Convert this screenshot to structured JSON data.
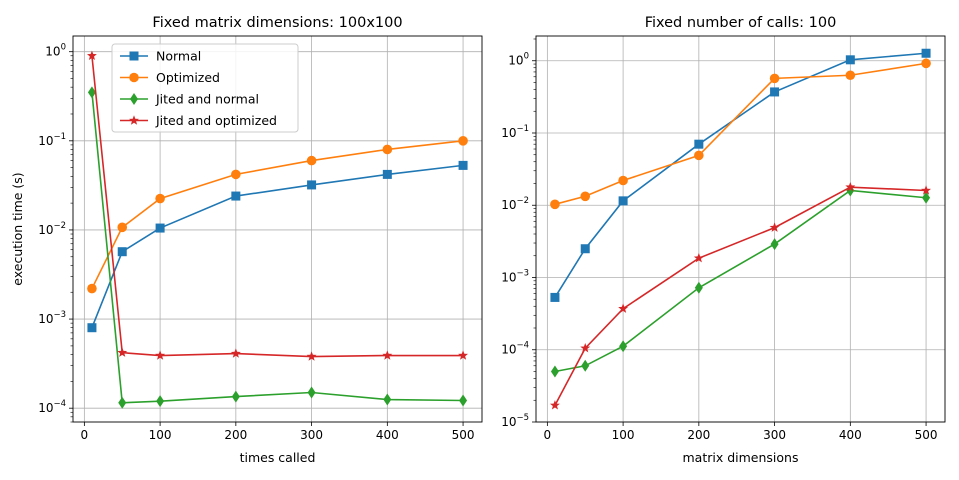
{
  "chart_data": [
    {
      "type": "line",
      "title": "Fixed matrix dimensions: 100x100",
      "xlabel": "times called",
      "ylabel": "execution time (s)",
      "yscale": "log",
      "xlim": [
        -15,
        525
      ],
      "ylim": [
        7e-05,
        1.5
      ],
      "xticks": [
        0,
        100,
        200,
        300,
        400,
        500
      ],
      "xtick_labels": [
        "0",
        "100",
        "200",
        "300",
        "400",
        "500"
      ],
      "yticks": [
        0.0001,
        0.001,
        0.01,
        0.1,
        1
      ],
      "ytick_labels": [
        {
          "base": "10",
          "exp": "−4"
        },
        {
          "base": "10",
          "exp": "−3"
        },
        {
          "base": "10",
          "exp": "−2"
        },
        {
          "base": "10",
          "exp": "−1"
        },
        {
          "base": "10",
          "exp": "0"
        }
      ],
      "grid": true,
      "legend": "upper-left",
      "x": [
        10,
        50,
        100,
        200,
        300,
        400,
        500
      ],
      "series": [
        {
          "name": "Normal",
          "color": "#1f77b4",
          "marker": "square",
          "values": [
            0.0008,
            0.0057,
            0.0105,
            0.024,
            0.032,
            0.042,
            0.053
          ]
        },
        {
          "name": "Optimized",
          "color": "#ff7f0e",
          "marker": "circle",
          "values": [
            0.0022,
            0.0107,
            0.0225,
            0.042,
            0.06,
            0.08,
            0.1
          ]
        },
        {
          "name": "Jited and normal",
          "color": "#2ca02c",
          "marker": "diamond",
          "values": [
            0.35,
            0.000115,
            0.00012,
            0.000135,
            0.00015,
            0.000125,
            0.000122
          ]
        },
        {
          "name": "Jited and optimized",
          "color": "#d62728",
          "marker": "star",
          "values": [
            0.9,
            0.00042,
            0.00039,
            0.00041,
            0.00038,
            0.00039,
            0.00039
          ]
        }
      ]
    },
    {
      "type": "line",
      "title": "Fixed number of calls: 100",
      "xlabel": "matrix dimensions",
      "ylabel": "",
      "yscale": "log",
      "xlim": [
        -15,
        525
      ],
      "ylim": [
        1e-05,
        2.2
      ],
      "xticks": [
        0,
        100,
        200,
        300,
        400,
        500
      ],
      "xtick_labels": [
        "0",
        "100",
        "200",
        "300",
        "400",
        "500"
      ],
      "yticks": [
        1e-05,
        0.0001,
        0.001,
        0.01,
        0.1,
        1
      ],
      "ytick_labels": [
        {
          "base": "10",
          "exp": "−5"
        },
        {
          "base": "10",
          "exp": "−4"
        },
        {
          "base": "10",
          "exp": "−3"
        },
        {
          "base": "10",
          "exp": "−2"
        },
        {
          "base": "10",
          "exp": "−1"
        },
        {
          "base": "10",
          "exp": "0"
        }
      ],
      "grid": true,
      "x": [
        10,
        50,
        100,
        200,
        300,
        400,
        500
      ],
      "series": [
        {
          "name": "Normal",
          "color": "#1f77b4",
          "marker": "square",
          "values": [
            0.00053,
            0.0025,
            0.0115,
            0.07,
            0.37,
            1.03,
            1.27
          ]
        },
        {
          "name": "Optimized",
          "color": "#ff7f0e",
          "marker": "circle",
          "values": [
            0.0103,
            0.0133,
            0.022,
            0.049,
            0.57,
            0.63,
            0.92
          ]
        },
        {
          "name": "Jited and normal",
          "color": "#2ca02c",
          "marker": "diamond",
          "values": [
            5e-05,
            6e-05,
            0.000112,
            0.00072,
            0.0029,
            0.016,
            0.0127
          ]
        },
        {
          "name": "Jited and optimized",
          "color": "#d62728",
          "marker": "star",
          "values": [
            1.7e-05,
            0.000105,
            0.00037,
            0.00185,
            0.0049,
            0.0178,
            0.016
          ]
        }
      ]
    }
  ]
}
